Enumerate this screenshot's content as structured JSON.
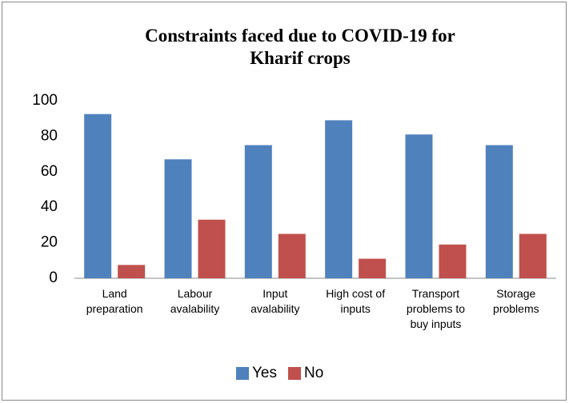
{
  "chart_data": {
    "type": "bar",
    "title": "Constraints faced due to COVID-19 for Kharif crops",
    "categories": [
      "Land preparation",
      "Labour avalability",
      "Input avalability",
      "High cost of inputs",
      "Transport problems to buy inputs",
      "Storage problems"
    ],
    "series": [
      {
        "name": "Yes",
        "color": "#4f81bd",
        "values": [
          92.5,
          67,
          75,
          89,
          81,
          75
        ]
      },
      {
        "name": "No",
        "color": "#c0504d",
        "values": [
          7.5,
          33,
          25,
          11,
          19,
          25
        ]
      }
    ],
    "ylim": [
      0,
      100
    ],
    "yticks": [
      0,
      20,
      40,
      60,
      80,
      100
    ],
    "grid": false,
    "legend": "bottom"
  }
}
